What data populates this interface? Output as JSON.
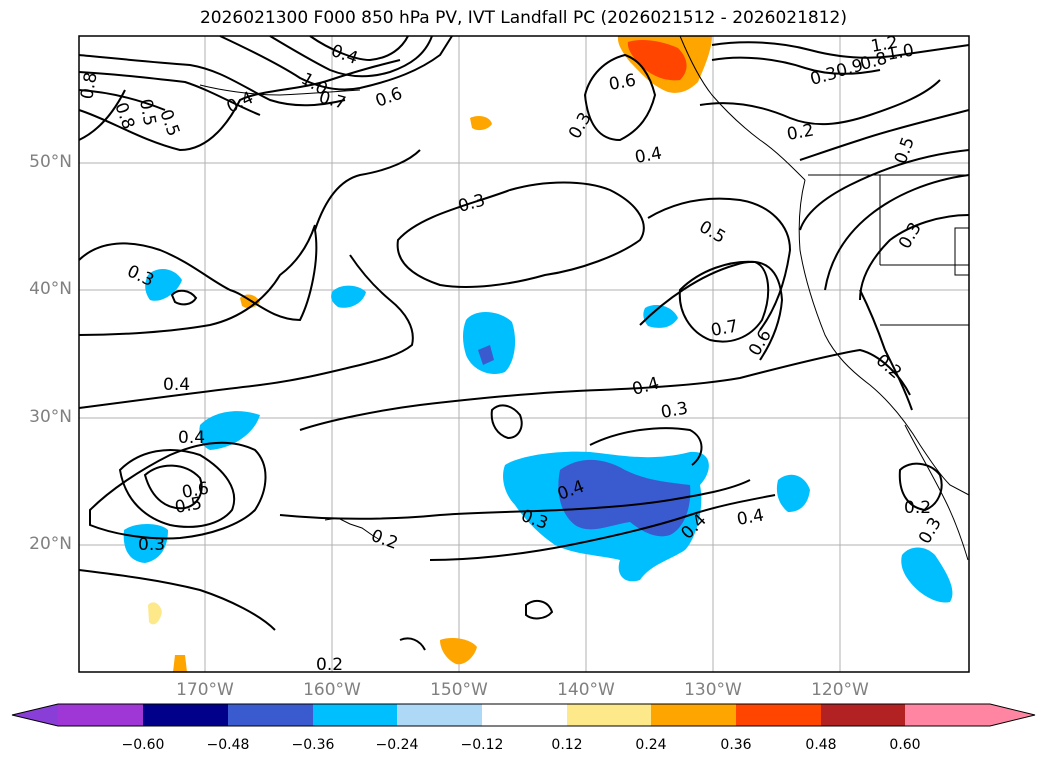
{
  "title": "2026021300 F000 850 hPa PV, IVT Landfall PC (2026021512 - 2026021812)",
  "map": {
    "lat_labels": [
      "50°N",
      "40°N",
      "30°N",
      "20°N"
    ],
    "lon_labels": [
      "170°W",
      "160°W",
      "150°W",
      "140°W",
      "130°W",
      "120°W"
    ],
    "contour_labels": [
      "0.4",
      "0.5",
      "0.8",
      "0.5",
      "0.8",
      "0.7",
      "1.0",
      "0.4",
      "0.6",
      "0.6",
      "0.9",
      "0.3",
      "0.4",
      "0.2",
      "1.2",
      "1.0",
      "0.8",
      "0.3",
      "0.5",
      "0.3",
      "0.3",
      "0.5",
      "0.7",
      "0.6",
      "0.4",
      "0.3",
      "0.4",
      "0.2",
      "0.4",
      "0.6",
      "0.5",
      "0.3",
      "0.2",
      "0.4",
      "0.3",
      "0.4",
      "0.4",
      "0.2",
      "0.3",
      "0.2"
    ]
  },
  "colorbar": {
    "tick_labels": [
      "−0.60",
      "−0.48",
      "−0.36",
      "−0.24",
      "−0.12",
      "0.12",
      "0.24",
      "0.36",
      "0.48",
      "0.60"
    ],
    "colors": [
      "#8a3ed8",
      "#9f36d6",
      "#00008b",
      "#3a5bd0",
      "#00bfff",
      "#add8f6",
      "#ffffff",
      "#fde98a",
      "#ffa500",
      "#ff4500",
      "#b22222",
      "#ff85a2"
    ]
  }
}
